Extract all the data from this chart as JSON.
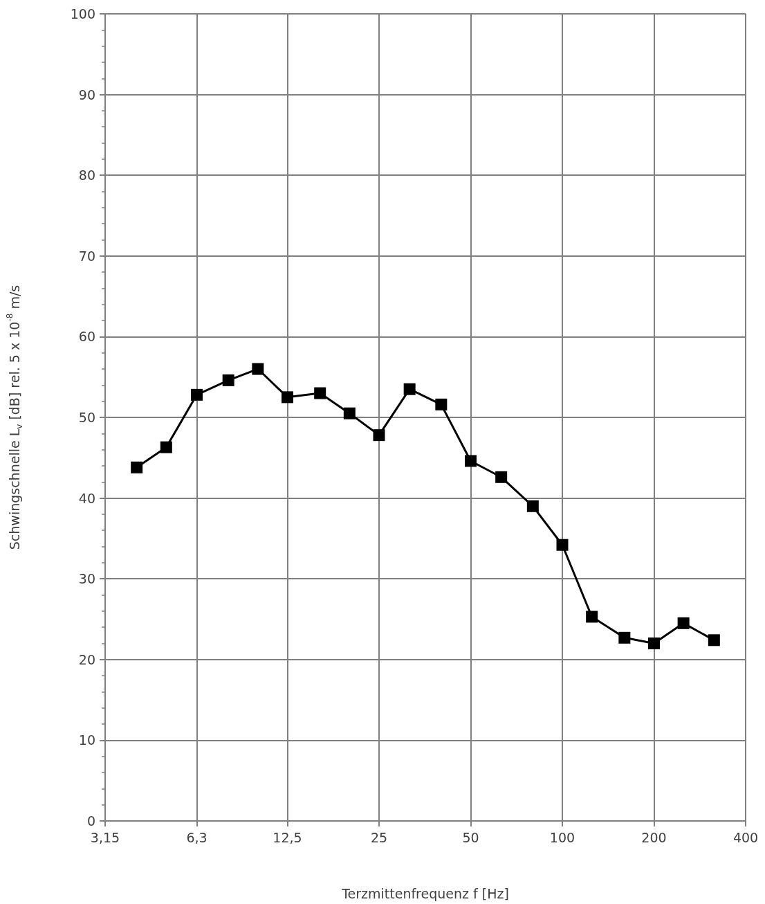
{
  "chart_data": {
    "type": "line",
    "xlabel": "Terzmittenfrequenz f [Hz]",
    "ylabel": "Schwingschnelle L$_{v}$ [dB] rel. 5 x 10$^{-8}$ m/s",
    "x": [
      4,
      5,
      6.3,
      8,
      10,
      12.5,
      16,
      20,
      25,
      31.5,
      40,
      50,
      63,
      80,
      100,
      125,
      160,
      200,
      250,
      315
    ],
    "series": [
      {
        "color": "#000000",
        "values": [
          43.8,
          46.3,
          52.8,
          54.6,
          56.0,
          52.5,
          53.0,
          50.5,
          47.8,
          53.5,
          51.6,
          44.6,
          42.6,
          39.0,
          34.2,
          25.3,
          22.7,
          22.0,
          24.5,
          22.4
        ]
      }
    ],
    "log": "x",
    "xlim": [
      3.15,
      400
    ],
    "xticks": [
      {
        "value": 3.15,
        "label": "3,15"
      },
      {
        "value": 6.3,
        "label": "6,3"
      },
      {
        "value": 12.5,
        "label": "12,5"
      },
      25,
      50,
      100,
      200,
      400
    ],
    "ylim": [
      0,
      100
    ],
    "yticks": [
      0,
      {
        "value": 2,
        "label": null
      },
      {
        "value": 4,
        "label": null
      },
      {
        "value": 6,
        "label": null
      },
      {
        "value": 8,
        "label": null
      },
      10,
      {
        "value": 12,
        "label": null
      },
      {
        "value": 14,
        "label": null
      },
      {
        "value": 16,
        "label": null
      },
      {
        "value": 18,
        "label": null
      },
      20,
      {
        "value": 22,
        "label": null
      },
      {
        "value": 24,
        "label": null
      },
      {
        "value": 26,
        "label": null
      },
      {
        "value": 28,
        "label": null
      },
      30,
      {
        "value": 32,
        "label": null
      },
      {
        "value": 34,
        "label": null
      },
      {
        "value": 36,
        "label": null
      },
      {
        "value": 38,
        "label": null
      },
      40,
      {
        "value": 42,
        "label": null
      },
      {
        "value": 44,
        "label": null
      },
      {
        "value": 46,
        "label": null
      },
      {
        "value": 48,
        "label": null
      },
      50,
      {
        "value": 52,
        "label": null
      },
      {
        "value": 54,
        "label": null
      },
      {
        "value": 56,
        "label": null
      },
      {
        "value": 58,
        "label": null
      },
      60,
      {
        "value": 62,
        "label": null
      },
      {
        "value": 64,
        "label": null
      },
      {
        "value": 66,
        "label": null
      },
      {
        "value": 68,
        "label": null
      },
      70,
      {
        "value": 72,
        "label": null
      },
      {
        "value": 74,
        "label": null
      },
      {
        "value": 76,
        "label": null
      },
      {
        "value": 78,
        "label": null
      },
      80,
      {
        "value": 82,
        "label": null
      },
      {
        "value": 84,
        "label": null
      },
      {
        "value": 86,
        "label": null
      },
      {
        "value": 88,
        "label": null
      },
      90,
      {
        "value": 92,
        "label": null
      },
      {
        "value": 94,
        "label": null
      },
      {
        "value": 96,
        "label": null
      },
      {
        "value": 98,
        "label": null
      },
      100
    ],
    "grid": true,
    "marker": "square",
    "line_style": "solid"
  }
}
